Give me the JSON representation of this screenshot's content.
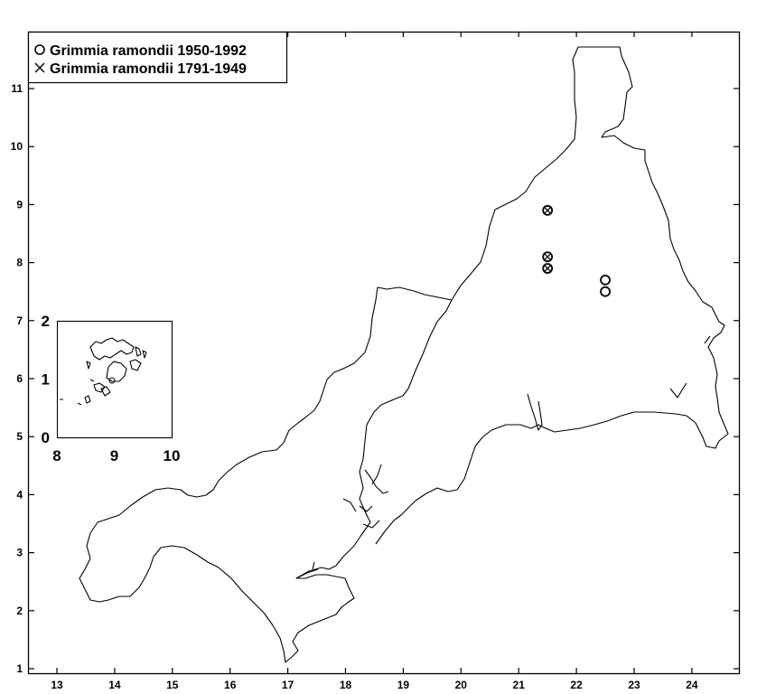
{
  "legend": {
    "entries": [
      {
        "symbol": "circle",
        "label": "Grimmia ramondii 1950-1992"
      },
      {
        "symbol": "cross",
        "label": "Grimmia ramondii 1791-1949"
      }
    ]
  },
  "chart_data": {
    "type": "scatter",
    "title": "",
    "xlabel": "",
    "ylabel": "",
    "xlim": [
      12.7,
      24.85
    ],
    "ylim": [
      0.9,
      11.85
    ],
    "x_ticks": [
      "13",
      "14",
      "15",
      "16",
      "17",
      "18",
      "19",
      "20",
      "21",
      "22",
      "23",
      "24"
    ],
    "y_ticks": [
      "1",
      "2",
      "3",
      "4",
      "5",
      "6",
      "7",
      "8",
      "9",
      "10",
      "11"
    ],
    "grid": false,
    "legend_position": "top-left",
    "series": [
      {
        "name": "Grimmia ramondii 1950-1992",
        "marker": "circle",
        "points": [
          {
            "x": 21.5,
            "y": 8.9
          },
          {
            "x": 21.5,
            "y": 8.1
          },
          {
            "x": 21.5,
            "y": 7.9
          },
          {
            "x": 22.5,
            "y": 7.7
          },
          {
            "x": 22.5,
            "y": 7.5
          }
        ]
      },
      {
        "name": "Grimmia ramondii 1791-1949",
        "marker": "cross",
        "points": [
          {
            "x": 21.5,
            "y": 8.9
          },
          {
            "x": 21.5,
            "y": 8.1
          },
          {
            "x": 21.5,
            "y": 7.9
          }
        ]
      }
    ],
    "inset": {
      "x_ticks": [
        "8",
        "9",
        "10"
      ],
      "y_ticks": [
        "0",
        "1",
        "2"
      ],
      "xlim": [
        8,
        10
      ],
      "ylim": [
        0,
        2
      ]
    }
  }
}
